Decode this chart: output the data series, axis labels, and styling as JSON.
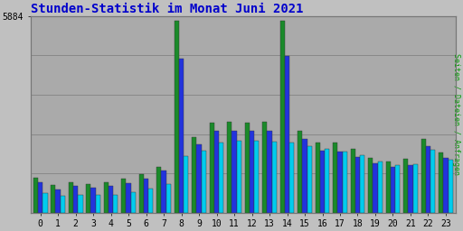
{
  "title": "Stunden-Statistik im Monat Juni 2021",
  "ylabel_right": "Seiten / Dateien / Anfragen",
  "ymax": 5884,
  "ytick_label": "5884",
  "hours": [
    0,
    1,
    2,
    3,
    4,
    5,
    6,
    7,
    8,
    9,
    10,
    11,
    12,
    13,
    14,
    15,
    16,
    17,
    18,
    19,
    20,
    21,
    22,
    23
  ],
  "seiten": [
    1050,
    820,
    900,
    860,
    900,
    1020,
    1150,
    1380,
    5750,
    2250,
    2700,
    2720,
    2700,
    2720,
    5750,
    2450,
    2100,
    2100,
    1900,
    1650,
    1520,
    1620,
    2200,
    1800
  ],
  "dateien": [
    900,
    700,
    790,
    750,
    800,
    890,
    1020,
    1250,
    4600,
    2050,
    2450,
    2450,
    2450,
    2450,
    4700,
    2200,
    1850,
    1830,
    1660,
    1470,
    1380,
    1410,
    1980,
    1650
  ],
  "anfragen": [
    580,
    490,
    540,
    520,
    540,
    600,
    710,
    860,
    1700,
    1850,
    2100,
    2150,
    2150,
    2130,
    2100,
    2000,
    1900,
    1830,
    1710,
    1520,
    1420,
    1460,
    1880,
    1580
  ],
  "color_seiten": "#1a8a2a",
  "color_dateien": "#2233dd",
  "color_anfragen": "#00ccee",
  "background_color": "#c0c0c0",
  "plot_bg_color": "#aaaaaa",
  "title_color": "#0000cc",
  "title_fontsize": 10,
  "bar_width": 0.27,
  "grid_color": "#888888",
  "right_label_color": "#009900"
}
